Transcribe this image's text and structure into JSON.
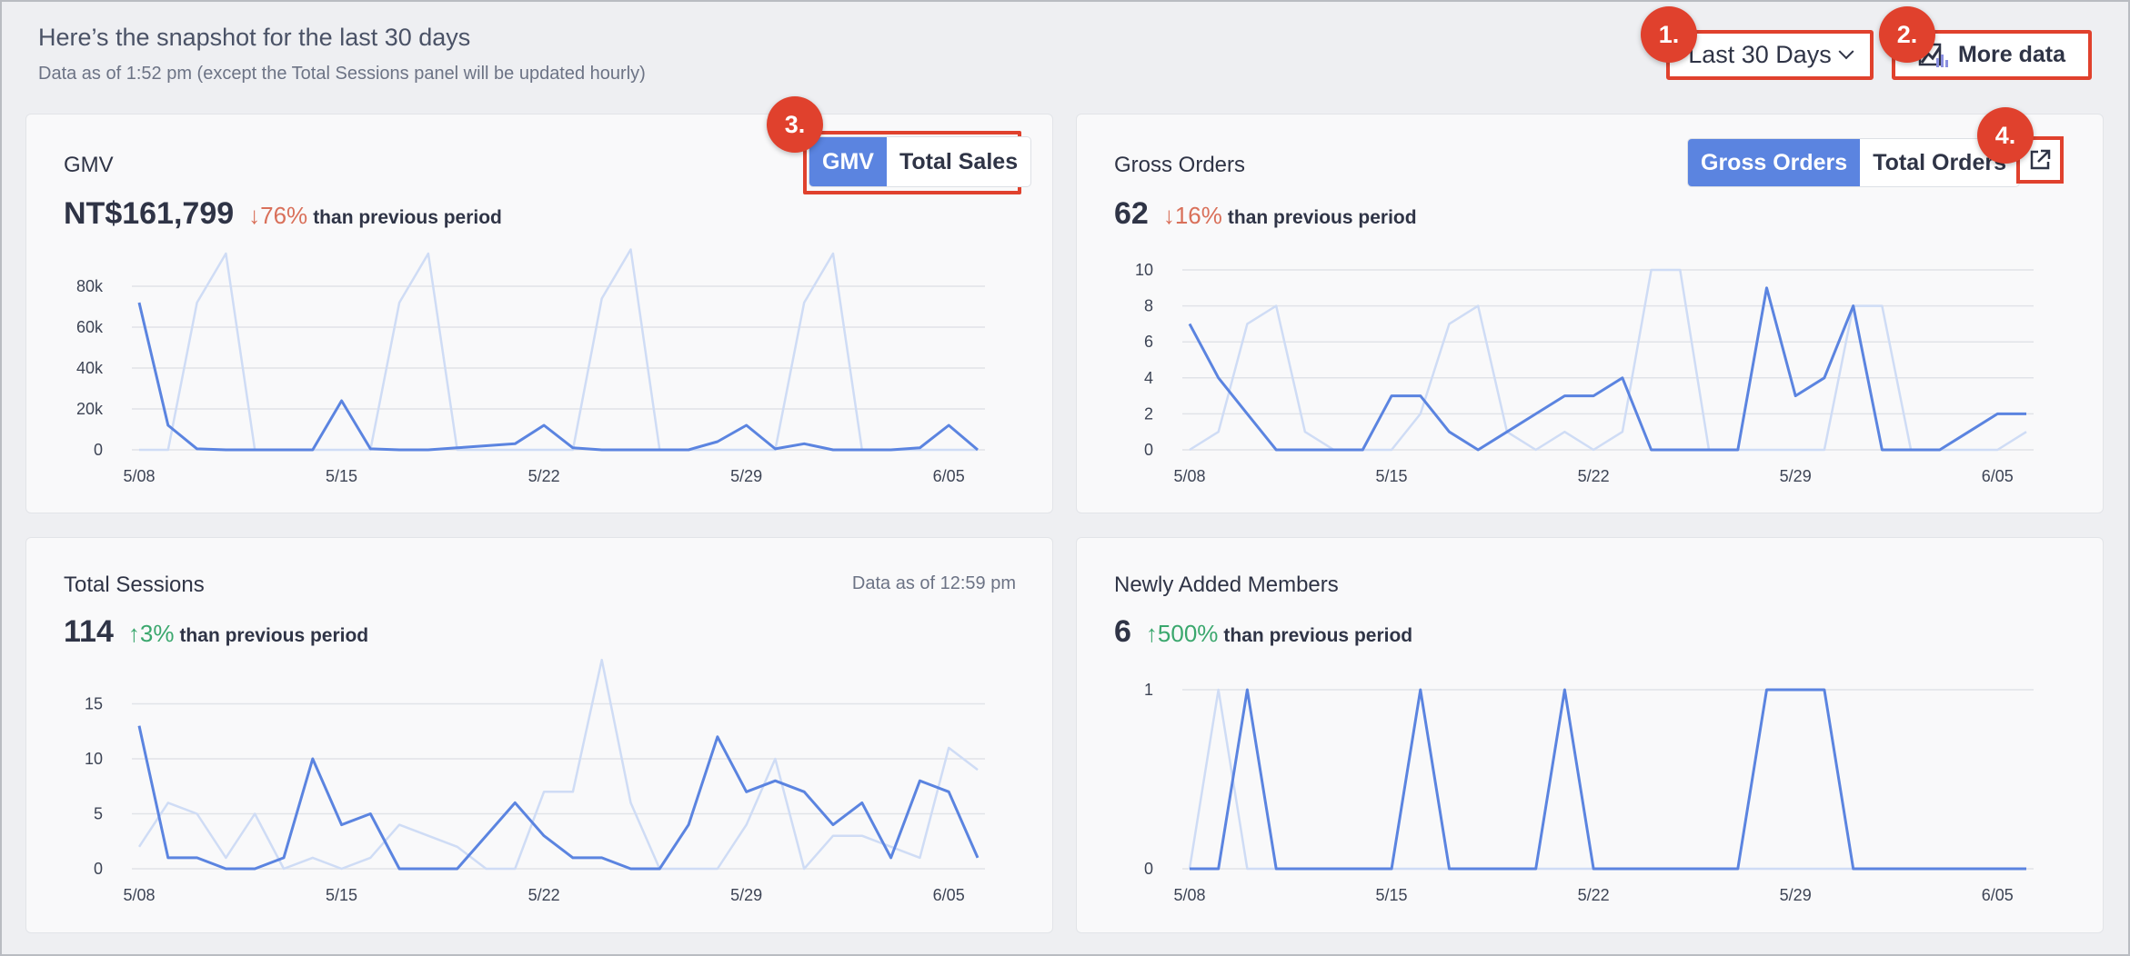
{
  "header": {
    "title": "Here’s the snapshot for the last 30 days",
    "subtitle": "Data as of 1:52 pm (except the Total Sessions panel will be updated hourly)"
  },
  "controls": {
    "range_label": "Last 30 Days",
    "more_data_label": "More data"
  },
  "badges": [
    "1.",
    "2.",
    "3.",
    "4."
  ],
  "colors": {
    "current": "#5b84e0",
    "previous": "#cfdcf5",
    "annotation": "#e0412d",
    "down": "#d9705a",
    "up": "#3aa76d"
  },
  "panels": {
    "gmv": {
      "title": "GMV",
      "value": "NT$161,799",
      "delta": "↓76%",
      "delta_text": "than previous period",
      "toggle": [
        "GMV",
        "Total Sales"
      ]
    },
    "orders": {
      "title": "Gross Orders",
      "value": "62",
      "delta": "↓16%",
      "delta_text": "than previous period",
      "toggle": [
        "Gross Orders",
        "Total Orders"
      ]
    },
    "sessions": {
      "title": "Total Sessions",
      "value": "114",
      "delta": "↑3%",
      "delta_text": "than previous period",
      "asof": "Data as of 12:59 pm"
    },
    "members": {
      "title": "Newly Added Members",
      "value": "6",
      "delta": "↑500%",
      "delta_text": "than previous period"
    }
  },
  "chart_data": [
    {
      "type": "line",
      "panel": "GMV",
      "x_tick_labels": [
        "5/08",
        "5/15",
        "5/22",
        "5/29",
        "6/05"
      ],
      "y_tick_labels": [
        "0",
        "20k",
        "40k",
        "60k",
        "80k"
      ],
      "ylim": [
        0,
        100000
      ],
      "series": [
        {
          "values": [
            72000,
            12000,
            500,
            0,
            0,
            0,
            0,
            24000,
            500,
            0,
            0,
            1000,
            2000,
            3000,
            12000,
            1000,
            0,
            0,
            0,
            0,
            4000,
            12000,
            500,
            3000,
            0,
            0,
            0,
            1000,
            12000,
            0
          ]
        },
        {
          "values": [
            0,
            0,
            72000,
            96000,
            0,
            0,
            0,
            0,
            0,
            72000,
            96000,
            0,
            0,
            0,
            0,
            0,
            74000,
            98000,
            0,
            0,
            0,
            0,
            0,
            72000,
            96000,
            0,
            0,
            0,
            0,
            0
          ]
        }
      ]
    },
    {
      "type": "line",
      "panel": "Gross Orders",
      "x_tick_labels": [
        "5/08",
        "5/15",
        "5/22",
        "5/29",
        "6/05"
      ],
      "y_tick_labels": [
        "0",
        "2",
        "4",
        "6",
        "8",
        "10"
      ],
      "ylim": [
        0,
        10
      ],
      "series": [
        {
          "values": [
            7,
            4,
            2,
            0,
            0,
            0,
            0,
            3,
            3,
            1,
            0,
            1,
            2,
            3,
            3,
            4,
            0,
            0,
            0,
            0,
            9,
            3,
            4,
            8,
            0,
            0,
            0,
            1,
            2,
            2
          ]
        },
        {
          "values": [
            0,
            1,
            7,
            8,
            1,
            0,
            0,
            0,
            2,
            7,
            8,
            1,
            0,
            1,
            0,
            1,
            10,
            10,
            0,
            0,
            0,
            0,
            0,
            8,
            8,
            0,
            0,
            0,
            0,
            1
          ]
        }
      ]
    },
    {
      "type": "line",
      "panel": "Total Sessions",
      "x_tick_labels": [
        "5/08",
        "5/15",
        "5/22",
        "5/29",
        "6/05"
      ],
      "y_tick_labels": [
        "0",
        "5",
        "10",
        "15"
      ],
      "ylim": [
        0,
        20
      ],
      "series": [
        {
          "values": [
            13,
            1,
            1,
            0,
            0,
            1,
            10,
            4,
            5,
            0,
            0,
            0,
            3,
            6,
            3,
            1,
            1,
            0,
            0,
            4,
            12,
            7,
            8,
            7,
            4,
            6,
            1,
            8,
            7,
            1
          ]
        },
        {
          "values": [
            2,
            6,
            5,
            1,
            5,
            0,
            1,
            0,
            1,
            4,
            3,
            2,
            0,
            0,
            7,
            7,
            19,
            6,
            0,
            0,
            0,
            4,
            10,
            0,
            3,
            3,
            2,
            1,
            11,
            9
          ]
        }
      ]
    },
    {
      "type": "line",
      "panel": "Newly Added Members",
      "x_tick_labels": [
        "5/08",
        "5/15",
        "5/22",
        "5/29",
        "6/05"
      ],
      "y_tick_labels": [
        "0",
        "1"
      ],
      "ylim": [
        0,
        1
      ],
      "series": [
        {
          "values": [
            0,
            0,
            1,
            0,
            0,
            0,
            0,
            0,
            1,
            0,
            0,
            0,
            0,
            1,
            0,
            0,
            0,
            0,
            0,
            0,
            1,
            1,
            1,
            0,
            0,
            0,
            0,
            0,
            0,
            0
          ]
        },
        {
          "values": [
            0,
            1,
            0,
            0,
            0,
            0,
            0,
            0,
            0,
            0,
            0,
            0,
            0,
            0,
            0,
            0,
            0,
            0,
            0,
            0,
            0,
            0,
            0,
            0,
            0,
            0,
            0,
            0,
            0,
            0
          ]
        }
      ]
    }
  ]
}
